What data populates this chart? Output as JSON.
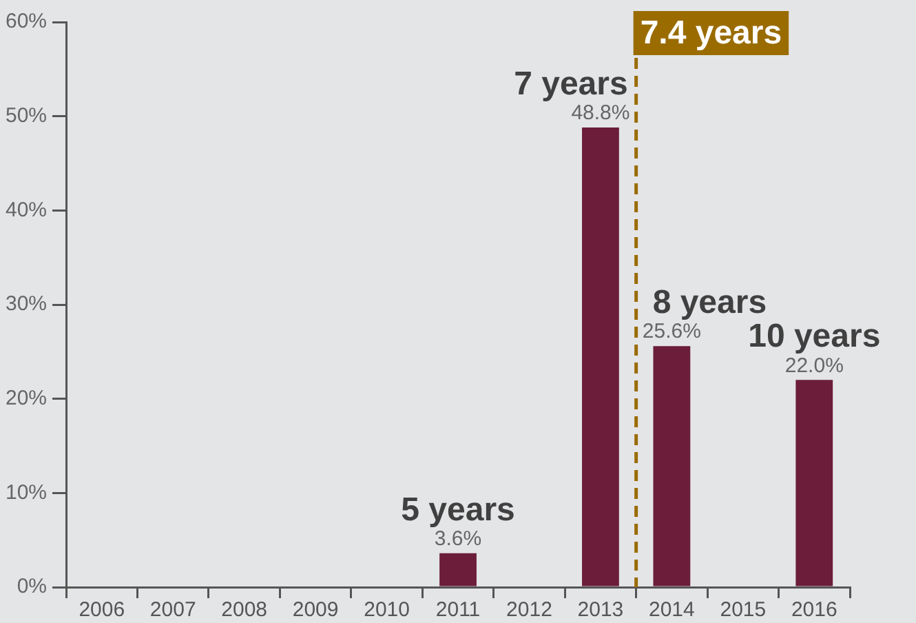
{
  "chart_data": {
    "type": "bar",
    "categories": [
      "2006",
      "2007",
      "2008",
      "2009",
      "2010",
      "2011",
      "2012",
      "2013",
      "2014",
      "2015",
      "2016"
    ],
    "values": [
      null,
      null,
      null,
      null,
      null,
      3.6,
      null,
      48.8,
      25.6,
      null,
      22.0
    ],
    "value_labels": [
      null,
      null,
      null,
      null,
      null,
      "3.6%",
      null,
      "48.8%",
      "25.6%",
      null,
      "22.0%"
    ],
    "color": "#6b1d3a",
    "ylim": [
      0,
      60
    ],
    "yticks": [
      {
        "value": 0,
        "label": "0%"
      },
      {
        "value": 10,
        "label": "10%"
      },
      {
        "value": 20,
        "label": "20%"
      },
      {
        "value": 30,
        "label": "30%"
      },
      {
        "value": 40,
        "label": "40%"
      },
      {
        "value": 50,
        "label": "50%"
      },
      {
        "value": 60,
        "label": "60%"
      }
    ],
    "grid": false,
    "legend": false,
    "annotations": [
      {
        "text": "5 years",
        "x": "2011",
        "y": 3.6
      },
      {
        "text": "7 years",
        "x": "2013",
        "y": 48.8
      },
      {
        "text": "8 years",
        "x": "2014",
        "y": 25.6
      },
      {
        "text": "10 years",
        "x": "2016",
        "y": 22.0
      }
    ],
    "ref_lines": [
      {
        "axis": "x",
        "value": "2013",
        "label": "7.4 years",
        "color": "#9a6c00",
        "line_style": "dashed"
      }
    ]
  }
}
